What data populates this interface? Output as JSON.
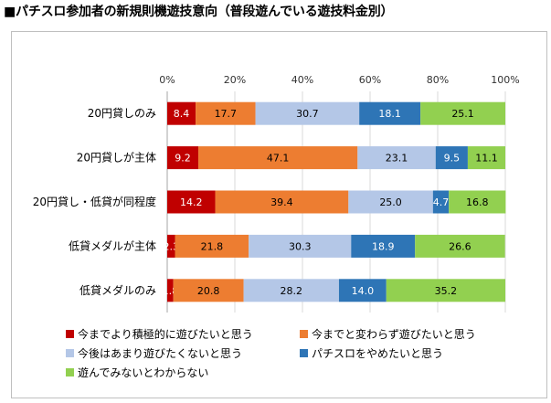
{
  "title": "■パチスロ参加者の新規則機遊技意向（普段遊んでいる遊技料金別）",
  "chart_data": {
    "type": "bar",
    "orientation": "horizontal",
    "stacked": "percent",
    "categories": [
      "20円貸しのみ",
      "20円貸しが主体",
      "20円貸し・低貸が同程度",
      "低貸メダルが主体",
      "低貸メダルのみ"
    ],
    "series": [
      {
        "name": "今までより積極的に遊びたいと思う",
        "color": "#c00000",
        "labelColor": "#ffffff",
        "values": [
          8.4,
          9.2,
          14.2,
          2.3,
          1.8
        ]
      },
      {
        "name": "今までと変わらず遊びたいと思う",
        "color": "#ed7d31",
        "labelColor": "#000000",
        "values": [
          17.7,
          47.1,
          39.4,
          21.8,
          20.8
        ]
      },
      {
        "name": "今後はあまり遊びたくないと思う",
        "color": "#b4c7e7",
        "labelColor": "#000000",
        "values": [
          30.7,
          23.1,
          25.0,
          30.3,
          28.2
        ]
      },
      {
        "name": "パチスロをやめたいと思う",
        "color": "#2e75b6",
        "labelColor": "#ffffff",
        "values": [
          18.1,
          9.5,
          4.7,
          18.9,
          14.0
        ]
      },
      {
        "name": "遊んでみないとわからない",
        "color": "#92d050",
        "labelColor": "#000000",
        "values": [
          25.1,
          11.1,
          16.8,
          26.6,
          35.2
        ]
      }
    ],
    "xticks": [
      "0%",
      "20%",
      "40%",
      "60%",
      "80%",
      "100%"
    ],
    "xlim": [
      0,
      100
    ],
    "grid": true,
    "legend": "bottom"
  }
}
